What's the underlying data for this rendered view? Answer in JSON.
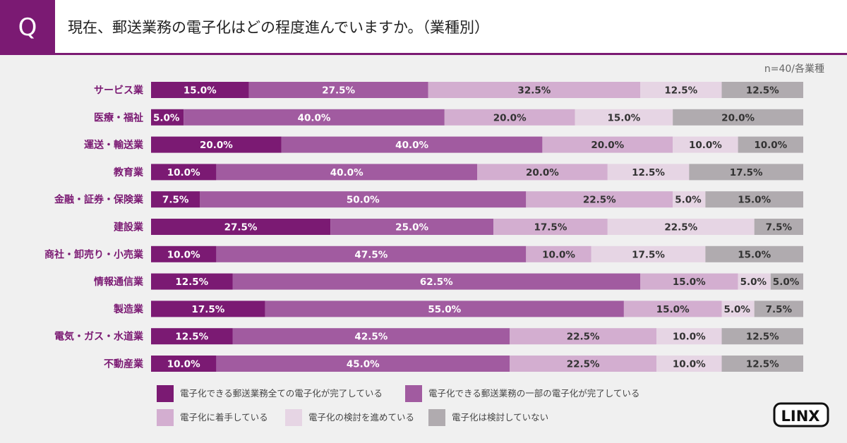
{
  "header": {
    "q_label": "Q",
    "title": "現在、郵送業務の電子化はどの程度進んでいますか。（業種別）"
  },
  "sample_note": "n=40/各業種",
  "logo_text": "LINX",
  "chart_data": {
    "type": "bar",
    "orientation": "horizontal",
    "stacked": true,
    "normalized": true,
    "categories": [
      "サービス業",
      "医療・福祉",
      "運送・輸送業",
      "教育業",
      "金融・証券・保険業",
      "建設業",
      "商社・卸売り・小売業",
      "情報通信業",
      "製造業",
      "電気・ガス・水道業",
      "不動産業"
    ],
    "value_labels": [
      [
        "15.0%",
        "27.5%",
        "32.5%",
        "12.5%",
        "12.5%"
      ],
      [
        "5.0%",
        "40.0%",
        "20.0%",
        "15.0%",
        "20.0%"
      ],
      [
        "20.0%",
        "40.0%",
        "20.0%",
        "10.0%",
        "10.0%"
      ],
      [
        "10.0%",
        "40.0%",
        "20.0%",
        "12.5%",
        "17.5%"
      ],
      [
        "7.5%",
        "50.0%",
        "22.5%",
        "5.0%",
        "15.0%"
      ],
      [
        "27.5%",
        "25.0%",
        "17.5%",
        "22.5%",
        "7.5%"
      ],
      [
        "10.0%",
        "47.5%",
        "10.0%",
        "17.5%",
        "15.0%"
      ],
      [
        "12.5%",
        "62.5%",
        "15.0%",
        "5.0%",
        "5.0%"
      ],
      [
        "17.5%",
        "55.0%",
        "15.0%",
        "5.0%",
        "7.5%"
      ],
      [
        "12.5%",
        "42.5%",
        "22.5%",
        "10.0%",
        "12.5%"
      ],
      [
        "10.0%",
        "45.0%",
        "22.5%",
        "10.0%",
        "12.5%"
      ]
    ],
    "series": [
      {
        "name": "電子化できる郵送業務全ての電子化が完了している",
        "color": "#7b1a73",
        "text_color": "#ffffff",
        "values": [
          15.0,
          5.0,
          20.0,
          10.0,
          7.5,
          27.5,
          10.0,
          12.5,
          17.5,
          12.5,
          10.0
        ]
      },
      {
        "name": "電子化できる郵送業務の一部の電子化が完了している",
        "color": "#a15ba0",
        "text_color": "#ffffff",
        "values": [
          27.5,
          40.0,
          40.0,
          40.0,
          50.0,
          25.0,
          47.5,
          62.5,
          55.0,
          42.5,
          45.0
        ]
      },
      {
        "name": "電子化に着手している",
        "color": "#d3aed0",
        "text_color": "#333333",
        "values": [
          32.5,
          20.0,
          20.0,
          20.0,
          22.5,
          17.5,
          10.0,
          15.0,
          15.0,
          22.5,
          22.5
        ]
      },
      {
        "name": "電子化の検討を進めている",
        "color": "#e6d5e4",
        "text_color": "#333333",
        "values": [
          12.5,
          15.0,
          10.0,
          12.5,
          5.0,
          22.5,
          17.5,
          5.0,
          5.0,
          10.0,
          10.0
        ]
      },
      {
        "name": "電子化は検討していない",
        "color": "#b0abaf",
        "text_color": "#333333",
        "values": [
          12.5,
          20.0,
          10.0,
          17.5,
          15.0,
          7.5,
          15.0,
          5.0,
          7.5,
          12.5,
          12.5
        ]
      }
    ],
    "xlim": [
      0,
      100
    ],
    "grid": false,
    "legend": "bottom"
  }
}
